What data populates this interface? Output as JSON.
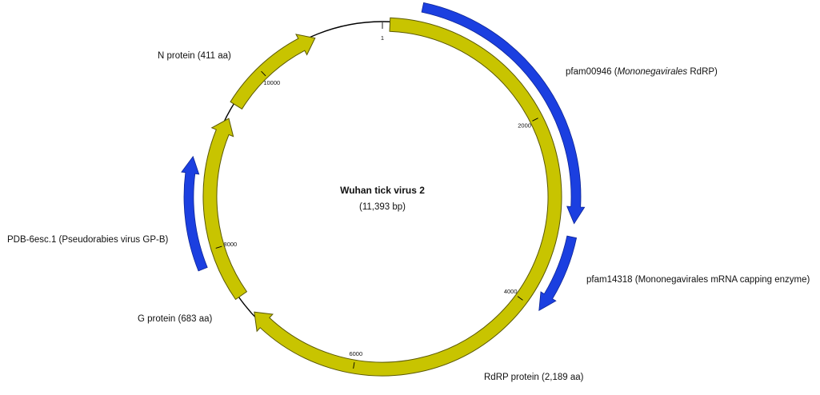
{
  "title": "Wuhan tick virus 2",
  "subtitle": "(11,393 bp)",
  "colors": {
    "backbone": "#000000",
    "gene": "#c8c400",
    "gene_stroke": "#5a5800",
    "domain": "#1b3fe0",
    "domain_stroke": "#0c2496"
  },
  "genes": [
    {
      "name": "RdRP protein (2,189 aa)",
      "start_deg": 2.5,
      "end_deg": 228,
      "direction": "clockwise"
    },
    {
      "name": "G protein (683 aa)",
      "start_deg": 235,
      "end_deg": 297,
      "direction": "clockwise"
    },
    {
      "name": "N protein (411 aa)",
      "start_deg": 302,
      "end_deg": 337,
      "direction": "clockwise"
    }
  ],
  "domains": [
    {
      "name_normal_1": "pfam00946 (",
      "name_italic": "Mononegavirales",
      "name_normal_2": " RdRP)",
      "start_deg": 12,
      "end_deg": 98,
      "direction": "clockwise"
    },
    {
      "name_normal_1": "pfam14318 (Mononegavirales mRNA capping enzyme)",
      "name_italic": "",
      "name_normal_2": "",
      "start_deg": 102,
      "end_deg": 126,
      "direction": "clockwise"
    },
    {
      "name_normal_1": "PDB-6esc.1 (Pseudorabies virus GP-B)",
      "name_italic": "",
      "name_normal_2": "",
      "start_deg": 248,
      "end_deg": 282,
      "direction": "clockwise"
    }
  ],
  "ticks": [
    {
      "label": "1",
      "deg": 0
    },
    {
      "label": "2000",
      "deg": 63.2
    },
    {
      "label": "4000",
      "deg": 126.4
    },
    {
      "label": "6000",
      "deg": 189.6
    },
    {
      "label": "8000",
      "deg": 252.8
    },
    {
      "label": "10000",
      "deg": 316
    }
  ]
}
